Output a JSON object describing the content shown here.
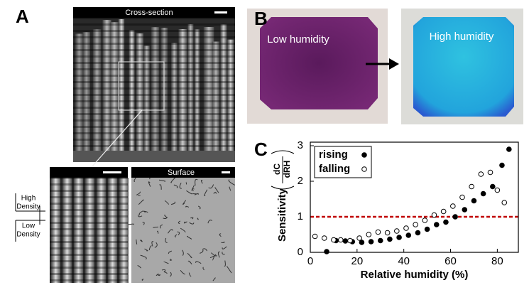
{
  "panels": {
    "a": {
      "label": "A",
      "cross_section_title": "Cross-section",
      "surface_title": "Surface",
      "high_density": [
        "High",
        "Density"
      ],
      "low_density": [
        "Low",
        "Density"
      ]
    },
    "b": {
      "label": "B",
      "low": "Low humidity",
      "high": "High humidity"
    },
    "c": {
      "label": "C"
    }
  },
  "chart_data": {
    "type": "scatter",
    "x_label": "Relative humidity (%)",
    "y_label": "Sensitivity",
    "y_label_fraction": {
      "numerator": "dC",
      "denominator": "dRH"
    },
    "xlim": [
      0,
      89
    ],
    "ylim": [
      0,
      3.1
    ],
    "xticks": [
      0,
      20,
      40,
      60,
      80
    ],
    "yticks": [
      0,
      1,
      2,
      3
    ],
    "legend": "upper left",
    "hline": {
      "value": 1,
      "color": "#c00000"
    },
    "series": [
      {
        "name": "rising",
        "color": "#000000",
        "marker": "filled",
        "x": [
          7,
          11,
          15,
          18,
          22,
          26,
          30,
          34,
          38,
          42,
          46,
          50,
          54,
          58,
          62,
          66,
          70,
          74,
          78,
          82,
          85
        ],
        "values": [
          0.02,
          0.33,
          0.32,
          0.3,
          0.28,
          0.3,
          0.33,
          0.37,
          0.42,
          0.48,
          0.55,
          0.65,
          0.78,
          0.85,
          1.0,
          1.2,
          1.45,
          1.65,
          1.85,
          2.45,
          2.9
        ]
      },
      {
        "name": "falling",
        "color": "#000000",
        "marker": "open",
        "x": [
          2,
          6,
          10,
          13,
          17,
          21,
          25,
          29,
          33,
          37,
          41,
          45,
          49,
          53,
          57,
          61,
          65,
          69,
          73,
          77,
          80,
          83
        ],
        "values": [
          0.45,
          0.4,
          0.35,
          0.35,
          0.33,
          0.4,
          0.5,
          0.57,
          0.55,
          0.6,
          0.68,
          0.78,
          0.9,
          1.05,
          1.15,
          1.3,
          1.55,
          1.85,
          2.2,
          2.25,
          1.75,
          1.4
        ]
      }
    ]
  }
}
